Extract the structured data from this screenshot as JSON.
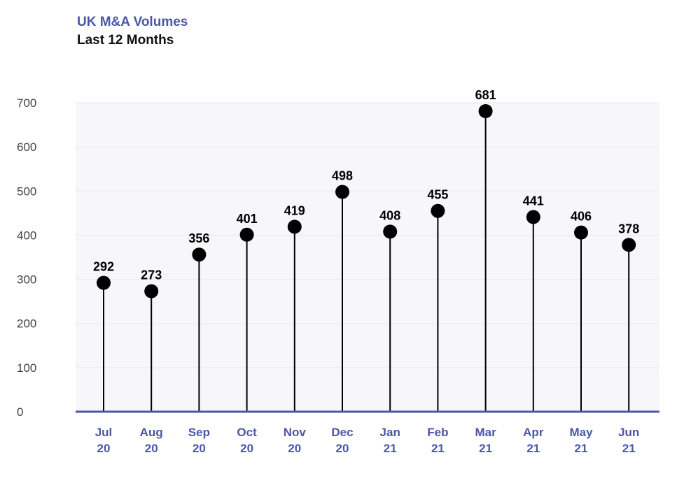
{
  "header": {
    "title": "UK M&A Volumes",
    "subtitle": "Last 12 Months"
  },
  "colors": {
    "title": "#4a57a6",
    "axis": "#4a57a6",
    "marker": "#000000",
    "plot_bg": "#f6f6fb",
    "grid": "#e8e8ef"
  },
  "chart_data": {
    "type": "scatter",
    "style": "lollipop",
    "title": "UK M&A Volumes",
    "subtitle": "Last 12 Months",
    "xlabel": "",
    "ylabel": "",
    "ylim": [
      0,
      700
    ],
    "yticks": [
      0,
      100,
      200,
      300,
      400,
      500,
      600,
      700
    ],
    "grid": true,
    "legend": "none",
    "categories": [
      [
        "Jul",
        "20"
      ],
      [
        "Aug",
        "20"
      ],
      [
        "Sep",
        "20"
      ],
      [
        "Oct",
        "20"
      ],
      [
        "Nov",
        "20"
      ],
      [
        "Dec",
        "20"
      ],
      [
        "Jan",
        "21"
      ],
      [
        "Feb",
        "21"
      ],
      [
        "Mar",
        "21"
      ],
      [
        "Apr",
        "21"
      ],
      [
        "May",
        "21"
      ],
      [
        "Jun",
        "21"
      ]
    ],
    "values": [
      292,
      273,
      356,
      401,
      419,
      498,
      408,
      455,
      681,
      441,
      406,
      378
    ]
  }
}
